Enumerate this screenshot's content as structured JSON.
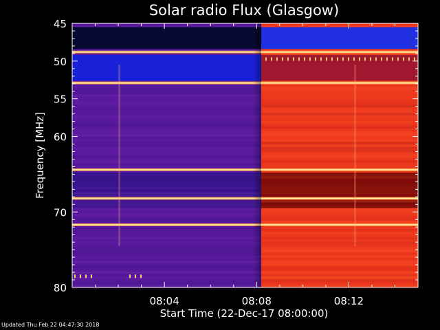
{
  "chart_data": {
    "type": "heatmap",
    "title": "Solar radio Flux (Glasgow)",
    "ylabel": "Frequency [MHz]",
    "xlabel": "Start Time (22-Dec-17 08:00:00)",
    "x_range_minutes": [
      0,
      15
    ],
    "ylim": [
      45,
      80
    ],
    "yticks": [
      45,
      50,
      55,
      60,
      70,
      80
    ],
    "x_ticks": [
      {
        "value": 4,
        "label": "08:04"
      },
      {
        "value": 8,
        "label": "08:08"
      },
      {
        "value": 12,
        "label": "08:12"
      }
    ],
    "transition_minute": 8.2,
    "bright_bands_mhz": [
      48.8,
      52.9,
      64.4,
      68.2,
      71.7
    ],
    "colors": {
      "before_base": "#5a1aa0",
      "before_low_band": "#1a20d8",
      "after_base": "#f03a1e",
      "after_dark_band": "#7a0a08",
      "band_highlight": "#ffe8a0"
    },
    "grid": false
  },
  "footer": {
    "updated": "Updated Thu Feb 22 04:47:30 2018"
  }
}
